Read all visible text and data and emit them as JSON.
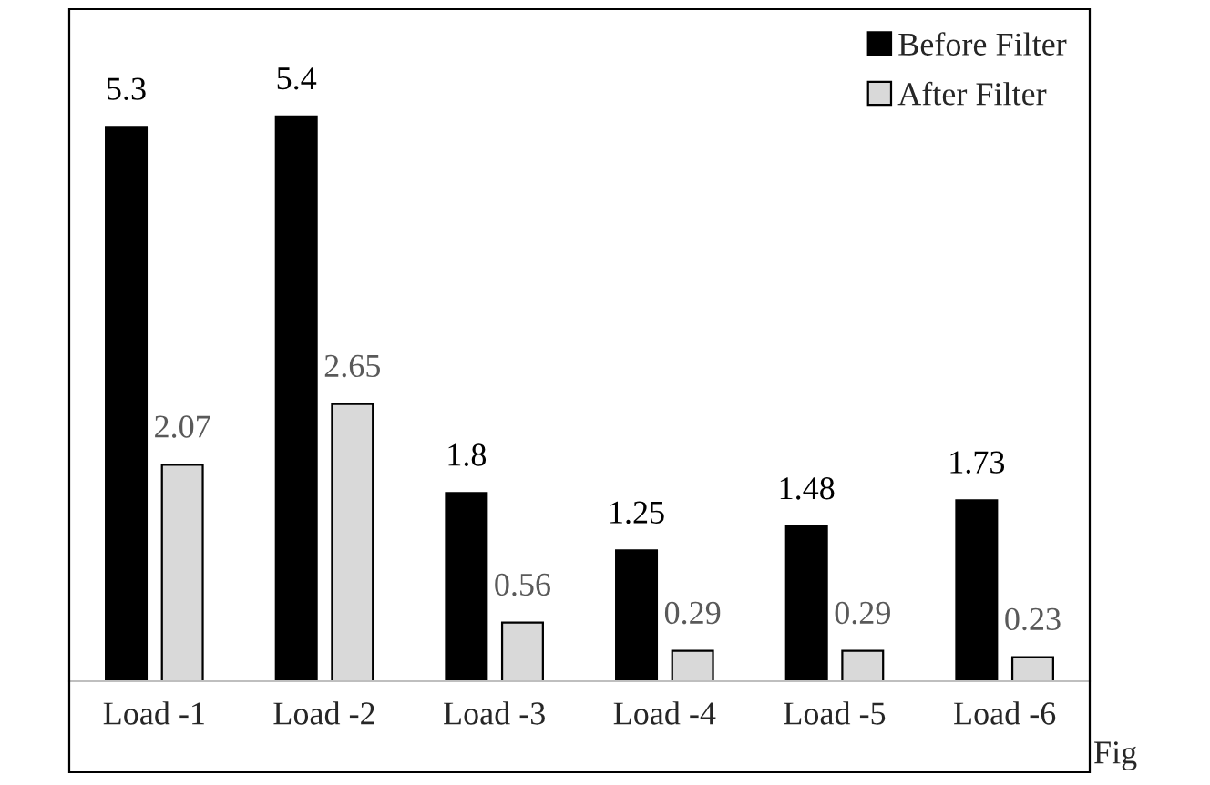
{
  "chart_data": {
    "type": "bar",
    "categories": [
      "Load -1",
      "Load -2",
      "Load -3",
      "Load -4",
      "Load -5",
      "Load -6"
    ],
    "series": [
      {
        "name": "Before Filter",
        "color": "#000000",
        "values": [
          5.3,
          5.4,
          1.8,
          1.25,
          1.48,
          1.73
        ]
      },
      {
        "name": "After Filter",
        "color": "#d9d9d9",
        "values": [
          2.07,
          2.65,
          0.56,
          0.29,
          0.29,
          0.23
        ]
      }
    ],
    "data_labels": true,
    "legend": "top right",
    "grid": false,
    "annotations": [
      "Fig"
    ]
  }
}
